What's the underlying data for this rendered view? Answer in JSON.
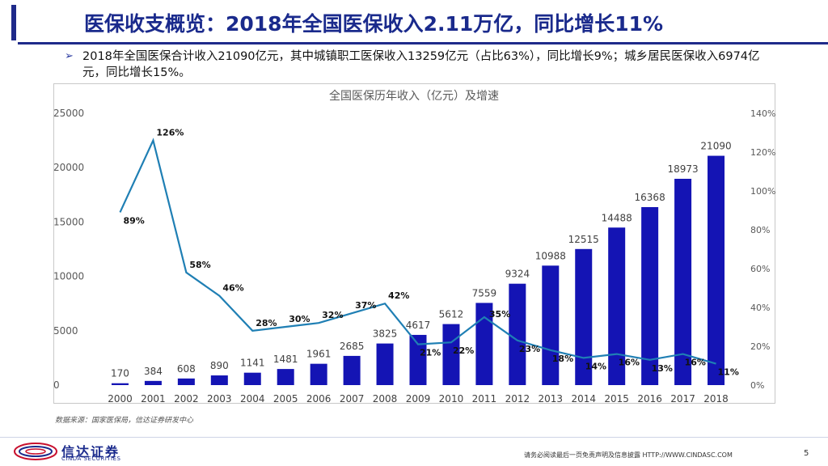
{
  "header": {
    "title": "医保收支概览：2018年全国医保收入2.11万亿，同比增长11%"
  },
  "bullet": {
    "mark": "➢",
    "text": "2018年全国医保合计收入21090亿元，其中城镇职工医保收入13259亿元（占比63%），同比增长9%；城乡居民医保收入6974亿元，同比增长15%。"
  },
  "chart_data": {
    "type": "bar",
    "title": "全国医保历年收入（亿元）及增速",
    "categories": [
      "2000",
      "2001",
      "2002",
      "2003",
      "2004",
      "2005",
      "2006",
      "2007",
      "2008",
      "2009",
      "2010",
      "2011",
      "2012",
      "2013",
      "2014",
      "2015",
      "2016",
      "2017",
      "2018"
    ],
    "series": [
      {
        "name": "收入（亿元）",
        "type": "bar",
        "axis": "left",
        "color": "#1414b4",
        "values": [
          170,
          384,
          608,
          890,
          1141,
          1481,
          1961,
          2685,
          3825,
          4617,
          5612,
          7559,
          9324,
          10988,
          12515,
          14488,
          16368,
          18973,
          21090
        ]
      },
      {
        "name": "增速",
        "type": "line",
        "axis": "right",
        "color": "#1f7fb4",
        "values": [
          89,
          126,
          58,
          46,
          28,
          30,
          32,
          37,
          42,
          21,
          22,
          35,
          23,
          18,
          14,
          16,
          13,
          16,
          11
        ]
      }
    ],
    "left_axis": {
      "min": 0,
      "max": 25000,
      "ticks": [
        "0",
        "5000",
        "10000",
        "15000",
        "20000",
        "25000"
      ]
    },
    "right_axis": {
      "min": 0,
      "max": 140,
      "ticks": [
        "0%",
        "20%",
        "40%",
        "60%",
        "80%",
        "100%",
        "120%",
        "140%"
      ]
    },
    "bar_labels": [
      "170",
      "384",
      "608",
      "890",
      "1141",
      "1481",
      "1961",
      "2685",
      "3825",
      "4617",
      "5612",
      "7559",
      "9324",
      "10988",
      "12515",
      "14488",
      "16368",
      "18973",
      "21090"
    ],
    "line_labels": [
      "89%",
      "126%",
      "58%",
      "46%",
      "28%",
      "30%",
      "32%",
      "37%",
      "42%",
      "21%",
      "22%",
      "35%",
      "23%",
      "18%",
      "14%",
      "16%",
      "13%",
      "16%",
      "11%"
    ]
  },
  "source": {
    "text": "数据来源：国家医保局，信达证券研发中心"
  },
  "footer": {
    "logo_cn": "信达证券",
    "logo_en": "CINDA SECURITIES",
    "disclaimer": "请务必阅读最后一页免责声明及信息披露  HTTP://WWW.CINDASC.COM",
    "page": "5"
  },
  "colors": {
    "brand": "#1a2a8c",
    "bar": "#1414b4",
    "line": "#1f7fb4"
  }
}
